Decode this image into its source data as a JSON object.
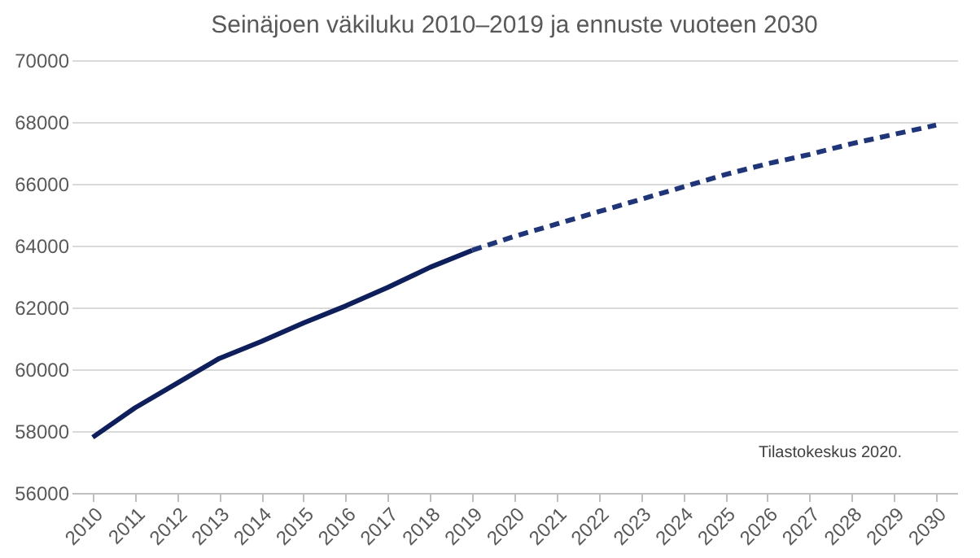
{
  "chart_data": {
    "type": "line",
    "title": "Seinäjoen väkiluku 2010–2019 ja ennuste vuoteen 2030",
    "categories": [
      "2010",
      "2011",
      "2012",
      "2013",
      "2014",
      "2015",
      "2016",
      "2017",
      "2018",
      "2019",
      "2020",
      "2021",
      "2022",
      "2023",
      "2024",
      "2025",
      "2026",
      "2027",
      "2028",
      "2029",
      "2030"
    ],
    "series": [
      {
        "color": "#0e1f5b",
        "line_style": "solid",
        "values": [
          57800,
          58750,
          59550,
          60350,
          60900,
          61500,
          62050,
          62650,
          63300,
          63850,
          null,
          null,
          null,
          null,
          null,
          null,
          null,
          null,
          null,
          null,
          null
        ]
      },
      {
        "color": "#1f3577",
        "line_style": "dashed",
        "values": [
          null,
          null,
          null,
          null,
          null,
          null,
          null,
          null,
          null,
          63850,
          64300,
          64700,
          65100,
          65500,
          65900,
          66300,
          66650,
          66950,
          67300,
          67600,
          67900
        ]
      }
    ],
    "ylim": [
      56000,
      70000
    ],
    "yticks": [
      56000,
      58000,
      60000,
      62000,
      64000,
      66000,
      68000,
      70000
    ],
    "grid": "y",
    "marker": "none",
    "annotations": [
      "Tilastokeskus 2020."
    ]
  }
}
